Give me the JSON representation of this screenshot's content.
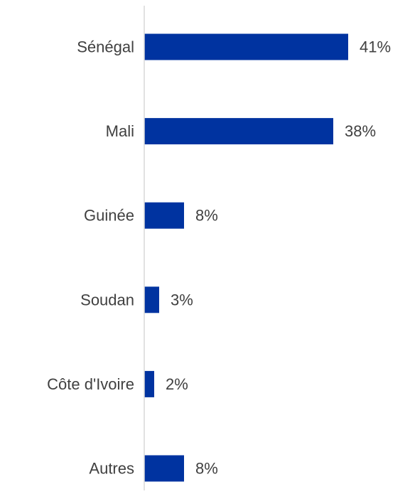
{
  "chart_data": {
    "type": "bar",
    "orientation": "horizontal",
    "categories": [
      "Sénégal",
      "Mali",
      "Guinée",
      "Soudan",
      "Côte d'Ivoire",
      "Autres"
    ],
    "values": [
      41,
      38,
      8,
      3,
      2,
      8
    ],
    "value_labels": [
      "41%",
      "38%",
      "8%",
      "3%",
      "2%",
      "8%"
    ],
    "title": "",
    "xlabel": "",
    "ylabel": "",
    "xlim": [
      0,
      45
    ],
    "grid": false,
    "legend": "none",
    "bar_color": "#0033A0",
    "axis_color": "#D9D9D9",
    "text_color": "#404040"
  }
}
